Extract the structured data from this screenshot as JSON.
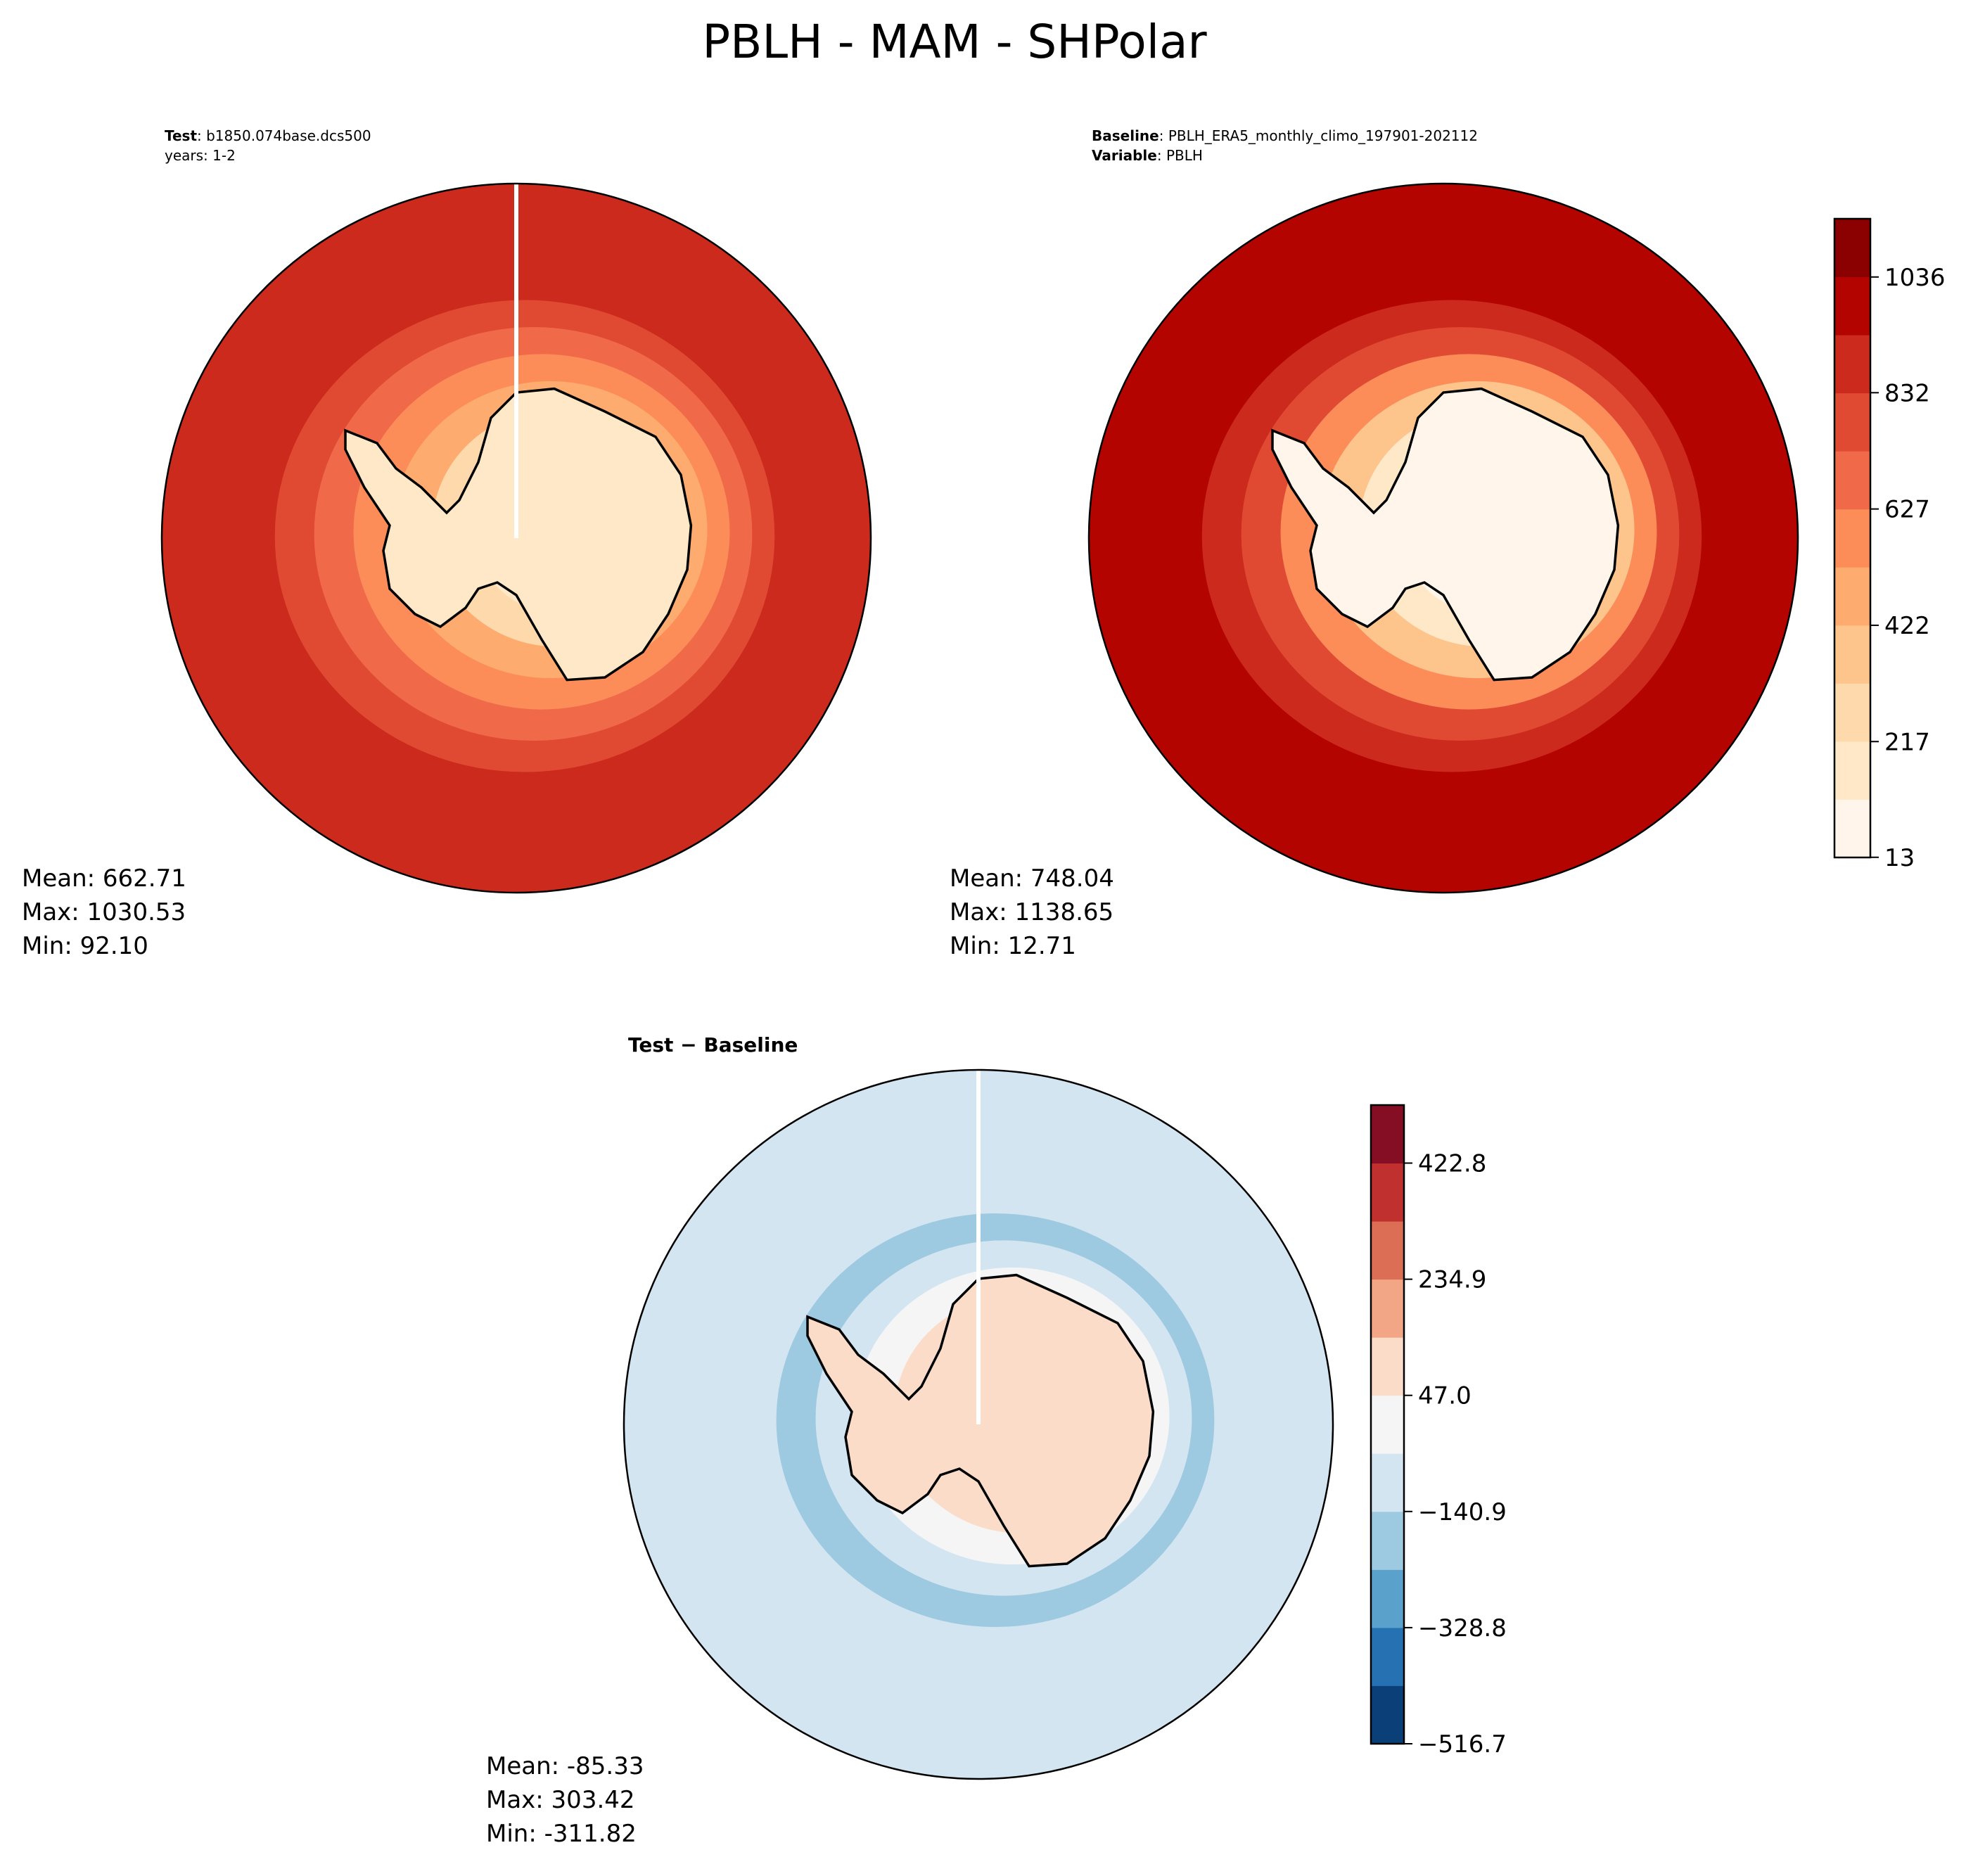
{
  "title": "PBLH - MAM - SHPolar",
  "panels": [
    {
      "header": [
        [
          "Test",
          ": b1850.074base.dcs500"
        ],
        [
          "years: 1-2"
        ]
      ],
      "stats": [
        "Mean: 662.71",
        "Max: 1030.53",
        "Min: 92.10"
      ]
    },
    {
      "header": [
        [
          "Baseline",
          ": PBLH_ERA5_monthly_climo_197901-202112"
        ],
        [
          "Variable",
          ": PBLH"
        ]
      ],
      "stats": [
        "Mean: 748.04",
        "Max: 1138.65",
        "Min: 12.71"
      ]
    },
    {
      "header": [
        [
          "Test − Baseline"
        ]
      ],
      "stats": [
        "Mean: -85.33",
        "Max: 303.42",
        "Min: -311.82"
      ]
    }
  ],
  "colorbars": [
    {
      "lim": [
        12.71,
        1138.65
      ],
      "ticks": [
        13,
        217,
        422,
        627,
        832,
        1036
      ],
      "colors": [
        "#fff5eb",
        "#fee8c8",
        "#fdd9ac",
        "#fdc48b",
        "#fdab6f",
        "#fc8d59",
        "#f06a49",
        "#e04a33",
        "#cc2a1c",
        "#b40400",
        "#8b0000"
      ]
    },
    {
      "lim": [
        -516.7,
        516.7
      ],
      "ticks": [
        {
          "value": -516.7,
          "label": "−516.7"
        },
        {
          "value": -328.8,
          "label": "−328.8"
        },
        {
          "value": -140.9,
          "label": "−140.9"
        },
        {
          "value": 47.0,
          "label": "47.0"
        },
        {
          "value": 234.9,
          "label": "234.9"
        },
        {
          "value": 422.8,
          "label": "422.8"
        }
      ],
      "colors": [
        "#0b3f78",
        "#2671b2",
        "#5aa1cc",
        "#9ecae1",
        "#d3e5f1",
        "#f5f5f5",
        "#fbdcc9",
        "#f2a686",
        "#dc6e56",
        "#c0302f",
        "#850d24"
      ]
    }
  ]
}
